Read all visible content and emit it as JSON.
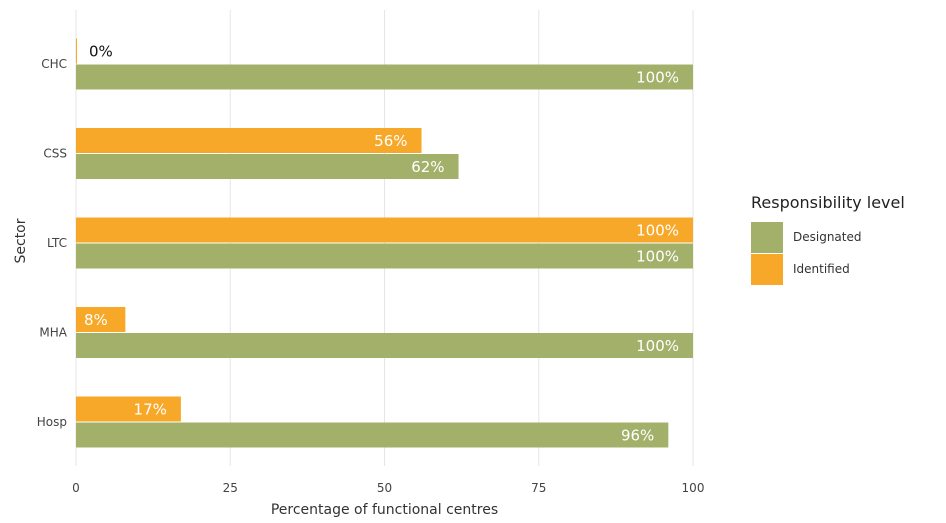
{
  "chart_data": {
    "type": "bar",
    "orientation": "horizontal",
    "categories": [
      "CHC",
      "CSS",
      "LTC",
      "MHA",
      "Hosp"
    ],
    "series": [
      {
        "name": "Identified",
        "color": "#F7A829",
        "values": [
          0,
          56,
          100,
          8,
          17
        ],
        "labels": [
          "0%",
          "56%",
          "100%",
          "8%",
          "17%"
        ]
      },
      {
        "name": "Designated",
        "color": "#A2B06A",
        "values": [
          100,
          62,
          100,
          100,
          96
        ],
        "labels": [
          "100%",
          "62%",
          "100%",
          "100%",
          "96%"
        ]
      }
    ],
    "xlabel": "Percentage of functional centres",
    "ylabel": "Sector",
    "xlim": [
      0,
      100
    ],
    "xticks": [
      0,
      25,
      50,
      75,
      100
    ],
    "grid": true,
    "legend": {
      "title": "Responsibility level",
      "placement": "right",
      "items": [
        {
          "label": "Designated",
          "color": "#A2B06A"
        },
        {
          "label": "Identified",
          "color": "#F7A829"
        }
      ]
    }
  }
}
